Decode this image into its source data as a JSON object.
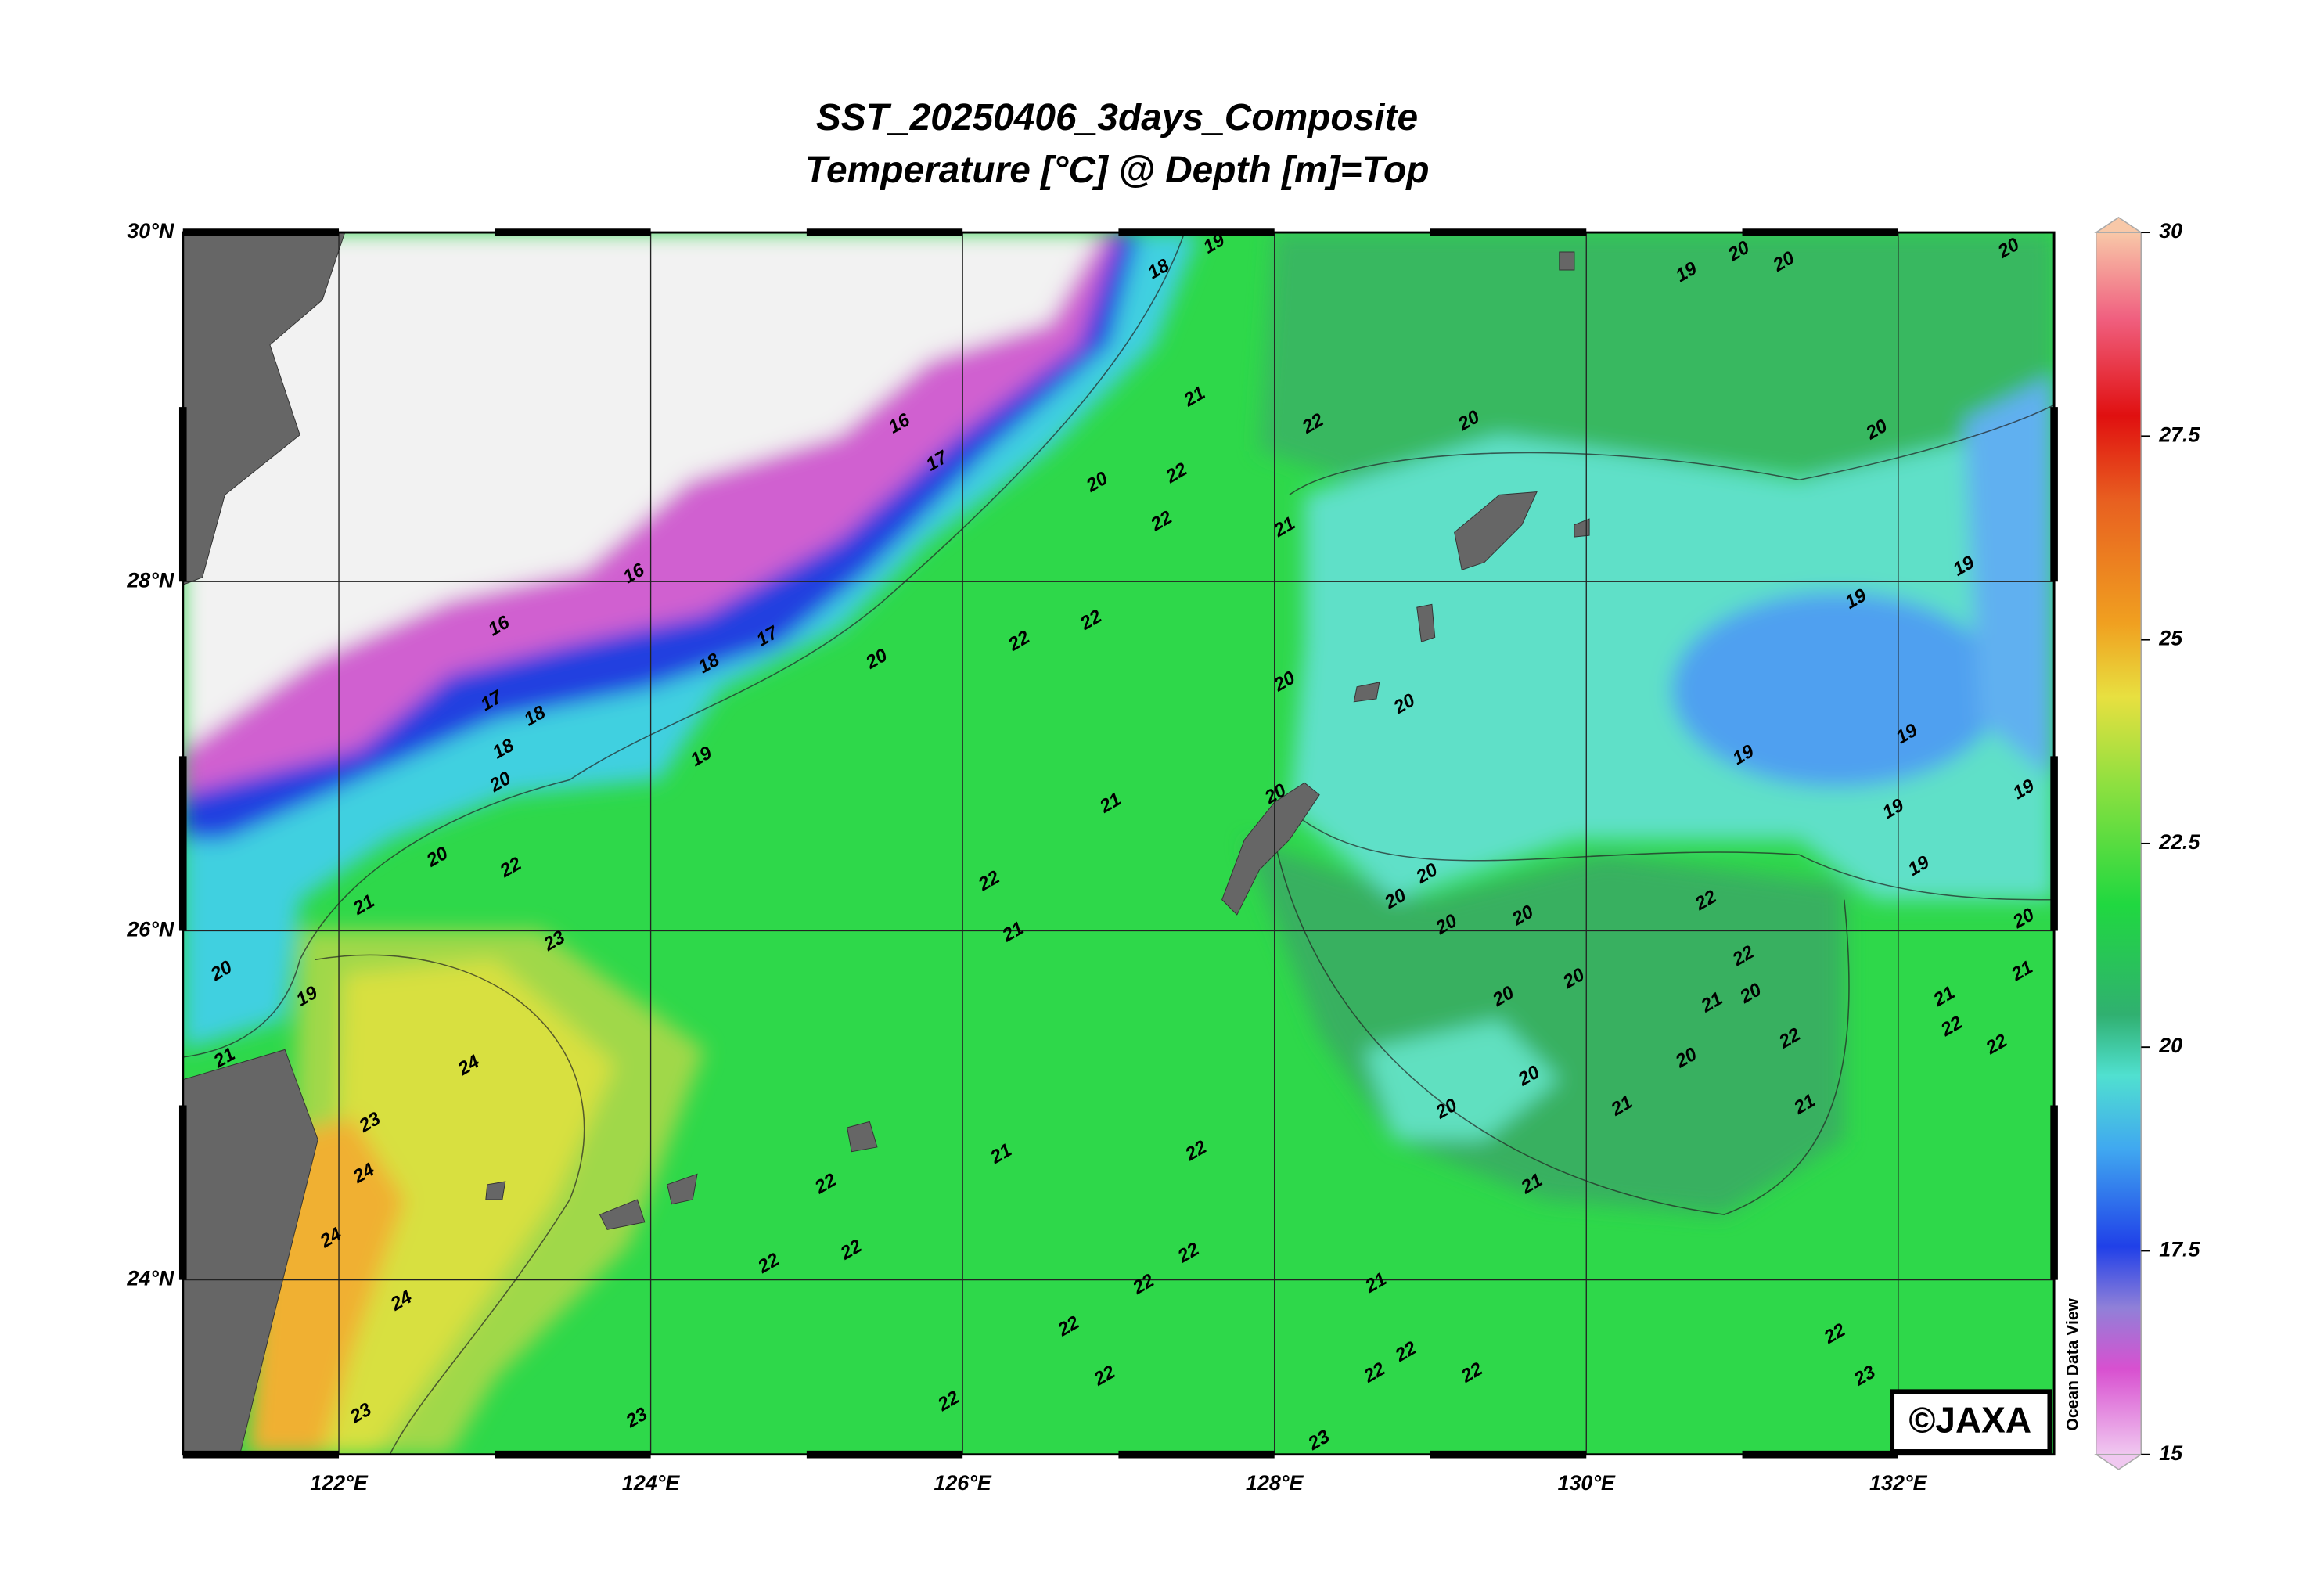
{
  "title": "SST_20250406_3days_Composite",
  "subtitle": "Temperature [°C] @ Depth [m]=Top",
  "map": {
    "xlim": [
      121,
      133
    ],
    "ylim": [
      23,
      30
    ],
    "xticks": [
      {
        "value": 122,
        "label": "122°E"
      },
      {
        "value": 124,
        "label": "124°E"
      },
      {
        "value": 126,
        "label": "126°E"
      },
      {
        "value": 128,
        "label": "128°E"
      },
      {
        "value": 130,
        "label": "130°E"
      },
      {
        "value": 132,
        "label": "132°E"
      }
    ],
    "yticks": [
      {
        "value": 30,
        "label": "30°N"
      },
      {
        "value": 28,
        "label": "28°N"
      },
      {
        "value": 26,
        "label": "26°N"
      },
      {
        "value": 24,
        "label": "24°N"
      }
    ],
    "contour_labels": [
      19,
      18,
      21,
      22,
      20,
      22,
      22,
      21,
      17,
      16,
      16,
      16,
      17,
      18,
      20,
      17,
      18,
      18,
      19,
      20,
      22,
      22,
      20,
      20,
      21,
      20,
      22,
      20,
      22,
      21,
      23,
      20,
      19,
      21,
      24,
      23,
      24,
      24,
      24,
      23,
      23,
      22,
      22,
      22,
      21,
      22,
      22,
      22,
      22,
      22,
      22,
      23,
      21,
      22,
      22,
      22,
      20,
      20,
      19,
      19,
      19,
      19,
      19,
      19,
      19,
      20,
      20,
      20,
      20,
      20,
      20,
      22,
      22,
      21,
      20,
      22,
      20,
      21,
      20,
      20,
      21,
      21,
      22,
      23,
      20,
      21,
      21,
      22,
      22,
      19,
      20,
      20,
      20,
      21
    ]
  },
  "colorbar": {
    "ylim": [
      15,
      30
    ],
    "yticks": [
      15,
      17.5,
      20,
      22.5,
      25,
      27.5,
      30
    ]
  },
  "side_label": "Ocean Data View",
  "credit": "©JAXA"
}
